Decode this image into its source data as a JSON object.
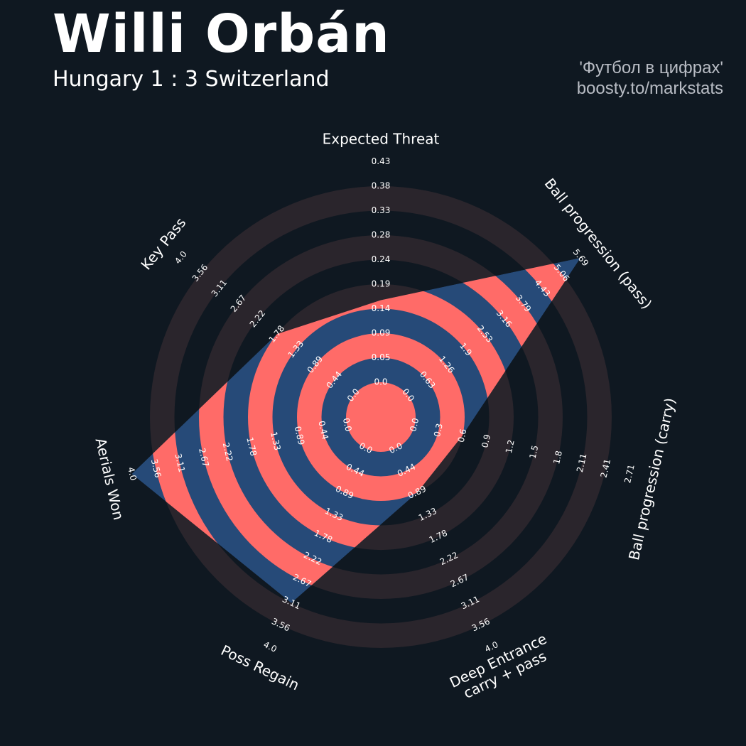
{
  "header": {
    "title": "Willi Orbán",
    "subtitle": "Hungary 1 : 3 Switzerland",
    "credit_line1": "'Футбол в цифрах'",
    "credit_line2": "boosty.to/markstats"
  },
  "colors": {
    "background": "#0f1821",
    "ring_band": "#2a252c",
    "player_fill": "#264a78",
    "player_band": "#ff6b68",
    "tick_text": "#ffffff"
  },
  "chart_data": {
    "type": "radar",
    "title": "Willi Orbán",
    "params": [
      {
        "label": "Expected Threat",
        "ticks": [
          "0.0",
          "0.05",
          "0.09",
          "0.14",
          "0.19",
          "0.24",
          "0.28",
          "0.33",
          "0.38",
          "0.43"
        ],
        "min": 0.0,
        "max": 0.43,
        "value": 0.16
      },
      {
        "label": "Ball progression (pass)",
        "ticks": [
          "0.0",
          "0.63",
          "1.26",
          "1.9",
          "2.53",
          "3.16",
          "3.79",
          "4.43",
          "5.06",
          "5.69"
        ],
        "min": 0.0,
        "max": 5.69,
        "value": 5.69
      },
      {
        "label": "Ball progression (carry)",
        "ticks": [
          "0.0",
          "0.3",
          "0.6",
          "0.9",
          "1.2",
          "1.5",
          "1.8",
          "2.11",
          "2.41",
          "2.71"
        ],
        "min": 0.0,
        "max": 2.71,
        "value": 0.6
      },
      {
        "label": "Deep Entrance\ncarry + pass",
        "ticks": [
          "0.0",
          "0.44",
          "0.89",
          "1.33",
          "1.78",
          "2.22",
          "2.67",
          "3.11",
          "3.56",
          "4.0"
        ],
        "min": 0.0,
        "max": 4.0,
        "value": 0.89
      },
      {
        "label": "Poss Regain",
        "ticks": [
          "0.0",
          "0.44",
          "0.89",
          "1.33",
          "1.78",
          "2.22",
          "2.67",
          "3.11",
          "3.56",
          "4.0"
        ],
        "min": 0.0,
        "max": 4.0,
        "value": 3.11
      },
      {
        "label": "Aerials Won",
        "ticks": [
          "0.0",
          "0.44",
          "0.89",
          "1.33",
          "1.78",
          "2.22",
          "2.67",
          "3.11",
          "3.56",
          "4.0"
        ],
        "min": 0.0,
        "max": 4.0,
        "value": 4.0
      },
      {
        "label": "Key Pass",
        "ticks": [
          "0.0",
          "0.44",
          "0.89",
          "1.33",
          "1.78",
          "2.22",
          "2.67",
          "3.11",
          "3.56",
          "4.0"
        ],
        "min": 0.0,
        "max": 4.0,
        "value": 1.78
      }
    ],
    "ring_count": 9
  }
}
